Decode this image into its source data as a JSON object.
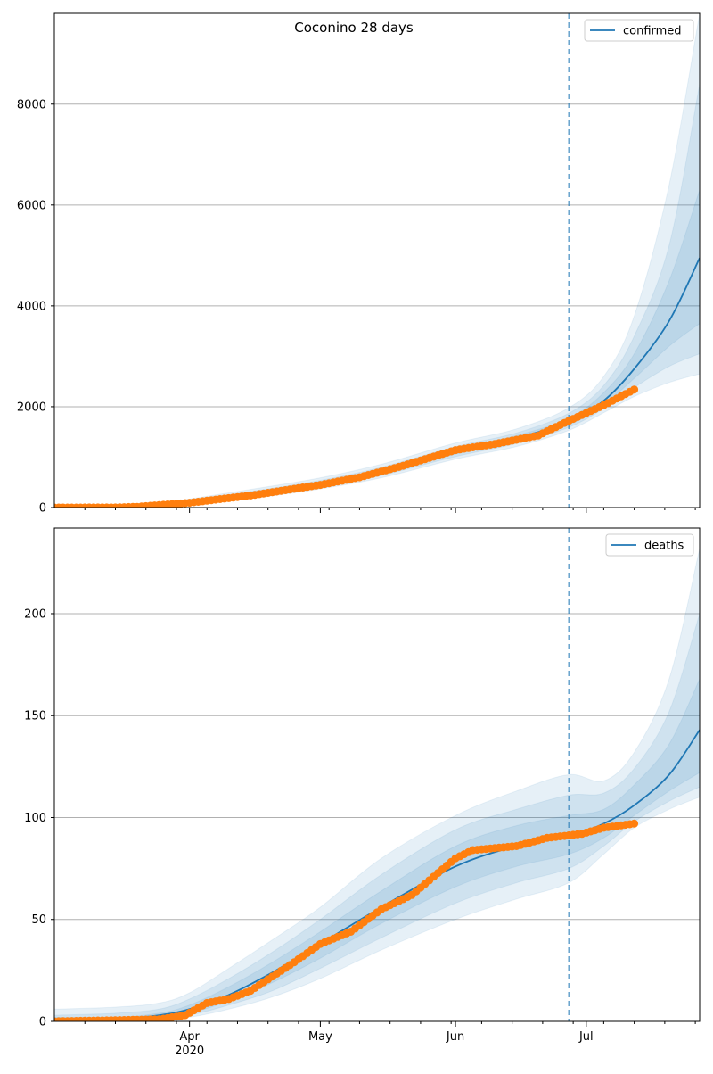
{
  "title": "Coconino 28 days",
  "colors": {
    "model_line": "#1f77b4",
    "band": "#1f77b4",
    "observed": "#ff7f0e",
    "cutoff_line": "#1f77b4",
    "grid": "#b0b0b0",
    "axes": "#000000"
  },
  "chart_data": [
    {
      "type": "line",
      "legend": "confirmed",
      "legend_position": "top-right",
      "grid": "y",
      "x_axis": {
        "start": "2020-03-01",
        "end": "2020-07-27",
        "ticks": [
          {
            "date": "2020-04-01",
            "label": "Apr",
            "sublabel": "2020"
          },
          {
            "date": "2020-05-01",
            "label": "May"
          },
          {
            "date": "2020-06-01",
            "label": "Jun"
          },
          {
            "date": "2020-07-01",
            "label": "Jul"
          }
        ],
        "show_labels": false
      },
      "y_axis": {
        "ylim": [
          0,
          9800
        ],
        "ticks": [
          0,
          2000,
          4000,
          6000,
          8000
        ]
      },
      "cutoff_date": "2020-06-27",
      "model": [
        {
          "x": "2020-03-01",
          "y": 0
        },
        {
          "x": "2020-03-15",
          "y": 5
        },
        {
          "x": "2020-03-22",
          "y": 25
        },
        {
          "x": "2020-04-01",
          "y": 110
        },
        {
          "x": "2020-04-15",
          "y": 260
        },
        {
          "x": "2020-05-01",
          "y": 470
        },
        {
          "x": "2020-05-15",
          "y": 720
        },
        {
          "x": "2020-06-01",
          "y": 1110
        },
        {
          "x": "2020-06-15",
          "y": 1380
        },
        {
          "x": "2020-06-27",
          "y": 1700
        },
        {
          "x": "2020-07-05",
          "y": 2120
        },
        {
          "x": "2020-07-12",
          "y": 2750
        },
        {
          "x": "2020-07-20",
          "y": 3700
        },
        {
          "x": "2020-07-27",
          "y": 4950
        }
      ],
      "bands": [
        {
          "name": "outer",
          "lower": [
            0,
            3,
            12,
            65,
            180,
            370,
            590,
            960,
            1210,
            1530,
            1880,
            2200,
            2480,
            2650
          ],
          "upper": [
            0,
            12,
            45,
            170,
            360,
            590,
            860,
            1280,
            1560,
            1980,
            2600,
            3800,
            6400,
            9800
          ]
        },
        {
          "name": "middle",
          "lower": [
            0,
            4,
            16,
            80,
            205,
            405,
            635,
            1010,
            1270,
            1590,
            1960,
            2380,
            2800,
            3050
          ],
          "upper": [
            0,
            9,
            38,
            145,
            320,
            540,
            800,
            1210,
            1480,
            1870,
            2420,
            3400,
            5200,
            8400
          ]
        },
        {
          "name": "inner",
          "lower": [
            0,
            4,
            20,
            95,
            230,
            435,
            675,
            1060,
            1325,
            1640,
            2040,
            2560,
            3200,
            3650
          ],
          "upper": [
            0,
            7,
            32,
            125,
            290,
            505,
            760,
            1160,
            1430,
            1770,
            2280,
            3050,
            4500,
            6300
          ]
        }
      ],
      "observed": {
        "start": "2020-03-01",
        "anchors": [
          {
            "x": "2020-03-01",
            "y": 0
          },
          {
            "x": "2020-03-15",
            "y": 2
          },
          {
            "x": "2020-03-20",
            "y": 15
          },
          {
            "x": "2020-04-01",
            "y": 95
          },
          {
            "x": "2020-04-15",
            "y": 240
          },
          {
            "x": "2020-05-01",
            "y": 450
          },
          {
            "x": "2020-05-10",
            "y": 600
          },
          {
            "x": "2020-05-20",
            "y": 830
          },
          {
            "x": "2020-06-01",
            "y": 1140
          },
          {
            "x": "2020-06-10",
            "y": 1260
          },
          {
            "x": "2020-06-20",
            "y": 1430
          },
          {
            "x": "2020-06-27",
            "y": 1720
          },
          {
            "x": "2020-07-05",
            "y": 2030
          },
          {
            "x": "2020-07-12",
            "y": 2340
          }
        ]
      }
    },
    {
      "type": "line",
      "legend": "deaths",
      "legend_position": "top-right",
      "grid": "y",
      "x_axis": {
        "start": "2020-03-01",
        "end": "2020-07-27",
        "ticks": [
          {
            "date": "2020-04-01",
            "label": "Apr",
            "sublabel": "2020"
          },
          {
            "date": "2020-05-01",
            "label": "May"
          },
          {
            "date": "2020-06-01",
            "label": "Jun"
          },
          {
            "date": "2020-07-01",
            "label": "Jul"
          }
        ],
        "show_labels": true
      },
      "y_axis": {
        "ylim": [
          0,
          242
        ],
        "ticks": [
          0,
          50,
          100,
          150,
          200
        ]
      },
      "cutoff_date": "2020-06-27",
      "model": [
        {
          "x": "2020-03-01",
          "y": 0
        },
        {
          "x": "2020-03-15",
          "y": 1
        },
        {
          "x": "2020-03-25",
          "y": 3
        },
        {
          "x": "2020-04-01",
          "y": 6
        },
        {
          "x": "2020-04-10",
          "y": 13
        },
        {
          "x": "2020-04-20",
          "y": 24
        },
        {
          "x": "2020-05-01",
          "y": 38
        },
        {
          "x": "2020-05-15",
          "y": 56
        },
        {
          "x": "2020-06-01",
          "y": 76
        },
        {
          "x": "2020-06-15",
          "y": 86
        },
        {
          "x": "2020-06-27",
          "y": 91
        },
        {
          "x": "2020-07-05",
          "y": 97
        },
        {
          "x": "2020-07-12",
          "y": 106
        },
        {
          "x": "2020-07-20",
          "y": 121
        },
        {
          "x": "2020-07-27",
          "y": 143
        }
      ],
      "bands": [
        {
          "name": "outer",
          "lower": [
            0,
            0,
            1,
            2,
            6,
            12,
            21,
            35,
            50,
            60,
            68,
            82,
            95,
            104,
            110
          ],
          "upper": [
            6,
            7,
            9,
            14,
            26,
            40,
            56,
            80,
            101,
            113,
            121,
            118,
            132,
            168,
            232
          ]
        },
        {
          "name": "middle",
          "lower": [
            0,
            0,
            1,
            3,
            8,
            15,
            26,
            41,
            58,
            68,
            75,
            86,
            98,
            108,
            115
          ],
          "upper": [
            3,
            4,
            6,
            11,
            21,
            34,
            50,
            72,
            94,
            104,
            111,
            112,
            124,
            152,
            200
          ]
        },
        {
          "name": "inner",
          "lower": [
            0,
            0,
            2,
            4,
            10,
            19,
            31,
            48,
            66,
            76,
            82,
            90,
            101,
            113,
            122
          ],
          "upper": [
            2,
            2,
            4,
            8,
            17,
            29,
            44,
            64,
            86,
            96,
            101,
            104,
            116,
            136,
            168
          ]
        }
      ],
      "observed": {
        "start": "2020-03-01",
        "anchors": [
          {
            "x": "2020-03-01",
            "y": 0
          },
          {
            "x": "2020-03-25",
            "y": 1
          },
          {
            "x": "2020-03-31",
            "y": 3
          },
          {
            "x": "2020-04-05",
            "y": 9
          },
          {
            "x": "2020-04-10",
            "y": 11
          },
          {
            "x": "2020-04-15",
            "y": 15
          },
          {
            "x": "2020-04-20",
            "y": 22
          },
          {
            "x": "2020-04-25",
            "y": 29
          },
          {
            "x": "2020-05-01",
            "y": 38
          },
          {
            "x": "2020-05-08",
            "y": 44
          },
          {
            "x": "2020-05-15",
            "y": 55
          },
          {
            "x": "2020-05-22",
            "y": 62
          },
          {
            "x": "2020-06-01",
            "y": 80
          },
          {
            "x": "2020-06-05",
            "y": 84
          },
          {
            "x": "2020-06-15",
            "y": 86
          },
          {
            "x": "2020-06-22",
            "y": 90
          },
          {
            "x": "2020-06-30",
            "y": 92
          },
          {
            "x": "2020-07-05",
            "y": 95
          },
          {
            "x": "2020-07-12",
            "y": 97
          }
        ]
      }
    }
  ]
}
